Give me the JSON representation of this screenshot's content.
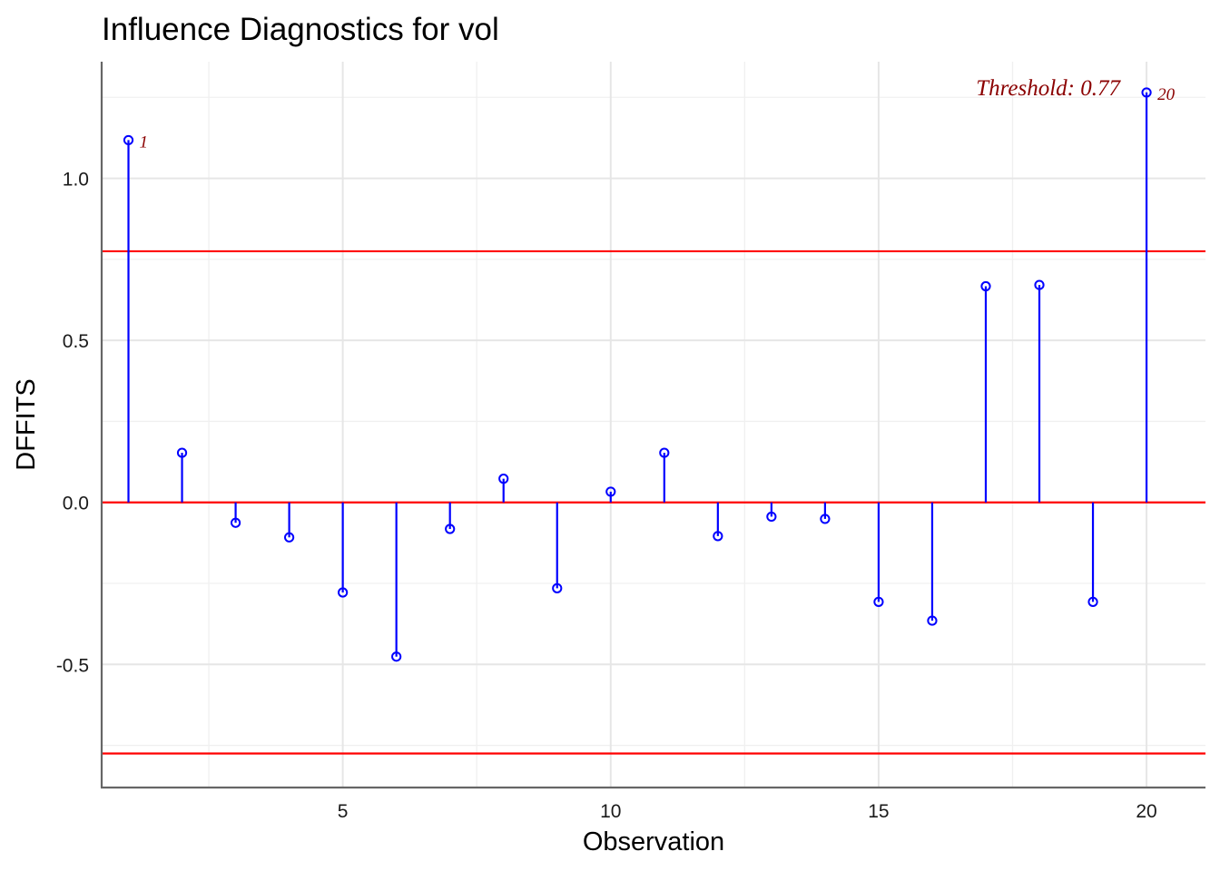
{
  "chart_data": {
    "type": "lollipop",
    "title": "Influence Diagnostics for vol",
    "xlabel": "Observation",
    "ylabel": "DFFITS",
    "xlim": [
      0.5,
      21.1
    ],
    "ylim": [
      -0.88,
      1.36
    ],
    "x_ticks": [
      5,
      10,
      15,
      20
    ],
    "x_minor_ticks": [
      2.5,
      7.5,
      12.5,
      17.5
    ],
    "y_ticks": [
      -0.5,
      0.0,
      0.5,
      1.0
    ],
    "y_tick_labels": [
      "-0.5",
      "0.0",
      "0.5",
      "1.0"
    ],
    "y_minor_ticks": [
      -0.75,
      -0.25,
      0.25,
      0.75,
      1.25
    ],
    "grid": true,
    "x": [
      1,
      2,
      3,
      4,
      5,
      6,
      7,
      8,
      9,
      10,
      11,
      12,
      13,
      14,
      15,
      16,
      17,
      18,
      19,
      20
    ],
    "values": [
      1.118,
      0.153,
      -0.063,
      -0.108,
      -0.278,
      -0.476,
      -0.082,
      0.073,
      -0.265,
      0.033,
      0.153,
      -0.104,
      -0.044,
      -0.051,
      -0.307,
      -0.365,
      0.667,
      0.671,
      -0.307,
      1.265
    ],
    "threshold": 0.77,
    "threshold_label": "Threshold: 0.77",
    "reference_lines": [
      0.775,
      0.0,
      -0.775
    ],
    "labeled_points": [
      {
        "x": 1,
        "label": "1"
      },
      {
        "x": 20,
        "label": "20"
      }
    ],
    "colors": {
      "points": "#0000ff",
      "reference_lines": "#ff0000",
      "annotation": "#8b0000"
    }
  }
}
